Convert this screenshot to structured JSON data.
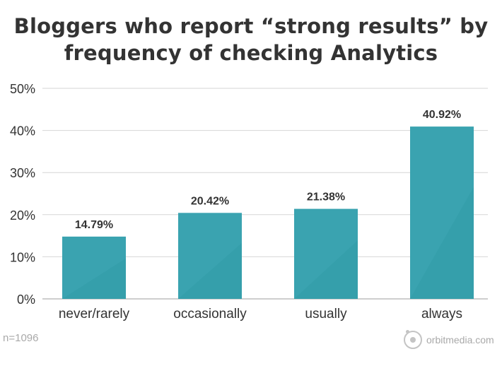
{
  "title_lines": [
    "Bloggers who report “strong results” by",
    "frequency of checking Analytics"
  ],
  "footer": {
    "sample_note": "n=1096",
    "brand": "orbitmedia.com"
  },
  "colors": {
    "bar": "#3aa3b0",
    "bar_shade": "#2f97a4",
    "grid": "#d6d6d6",
    "axis": "#bdbdbd",
    "text": "#333333"
  },
  "chart_data": {
    "type": "bar",
    "title": "Bloggers who report “strong results” by frequency of checking Analytics",
    "categories": [
      "never/rarely",
      "occasionally",
      "usually",
      "always"
    ],
    "values": [
      14.79,
      20.42,
      21.38,
      40.92
    ],
    "value_labels": [
      "14.79%",
      "20.42%",
      "21.38%",
      "40.92%"
    ],
    "ylim": [
      0,
      50
    ],
    "yticks": [
      0,
      10,
      20,
      30,
      40,
      50
    ],
    "ytick_labels": [
      "0%",
      "10%",
      "20%",
      "30%",
      "40%",
      "50%"
    ],
    "xlabel": "",
    "ylabel": "",
    "grid": true,
    "legend": "none"
  }
}
